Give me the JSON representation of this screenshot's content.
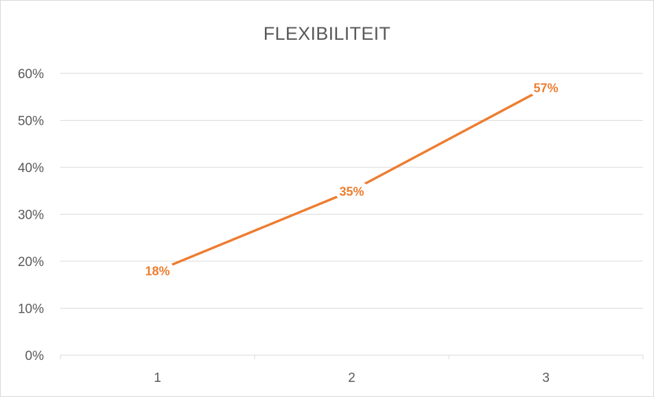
{
  "chart_data": {
    "type": "line",
    "title": "FLEXIBILITEIT",
    "xlabel": "",
    "ylabel": "",
    "categories": [
      "1",
      "2",
      "3"
    ],
    "series": [
      {
        "values": [
          0.18,
          0.35,
          0.57
        ],
        "data_labels": [
          "18%",
          "35%",
          "57%"
        ],
        "color": "#ED7D31"
      }
    ],
    "ylim": [
      0,
      0.6
    ],
    "y_ticks": [
      0,
      0.1,
      0.2,
      0.3,
      0.4,
      0.5,
      0.6
    ],
    "y_tick_labels": [
      "0%",
      "10%",
      "20%",
      "30%",
      "40%",
      "50%",
      "60%"
    ],
    "grid": true,
    "grid_color": "#d9d9d9",
    "legend": "none"
  }
}
